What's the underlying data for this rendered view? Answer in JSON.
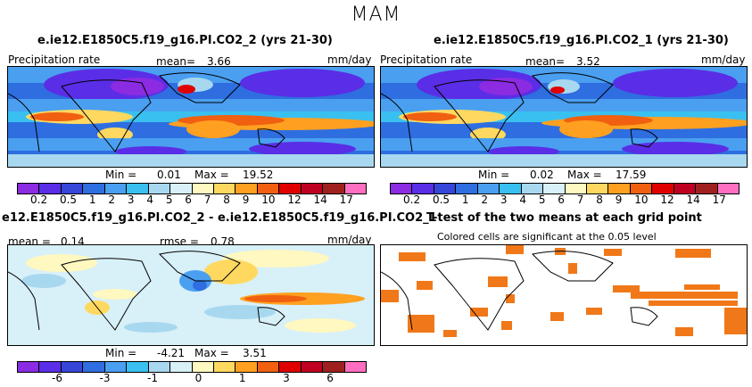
{
  "title": "MAM",
  "panels": {
    "top_left": {
      "title": "e.ie12.E1850C5.f19_g16.PI.CO2_2 (yrs 21-30)",
      "var_label": "Precipitation rate",
      "mean_label": "mean=",
      "mean_value": "3.66",
      "units": "mm/day",
      "min_label": "Min =",
      "min_value": "0.01",
      "max_label": "Max =",
      "max_value": "19.52"
    },
    "top_right": {
      "title": "e.ie12.E1850C5.f19_g16.PI.CO2_1 (yrs 21-30)",
      "var_label": "Precipitation rate",
      "mean_label": "mean=",
      "mean_value": "3.52",
      "units": "mm/day",
      "min_label": "Min =",
      "min_value": "0.02",
      "max_label": "Max =",
      "max_value": "17.59"
    },
    "bottom_left": {
      "title": "e12.E1850C5.f19_g16.PI.CO2_2 - e.ie12.E1850C5.f19_g16.PI.CO2_1",
      "mean_label": "mean =",
      "mean_value": "0.14",
      "rmse_label": "rmse =",
      "rmse_value": "0.78",
      "units": "mm/day",
      "min_label": "Min =",
      "min_value": "-4.21",
      "max_label": "Max =",
      "max_value": "3.51"
    },
    "bottom_right": {
      "title": "T-test of the two means at each grid point",
      "subtitle": "Colored cells are significant at the 0.05 level"
    }
  },
  "colorbars": {
    "precip_ticks": [
      "0.2",
      "0.5",
      "1",
      "2",
      "3",
      "4",
      "5",
      "6",
      "7",
      "8",
      "9",
      "10",
      "12",
      "14",
      "17"
    ],
    "precip_colors": [
      "#8b2be2",
      "#5a2ee6",
      "#3646d8",
      "#2e6ee0",
      "#4a9ff0",
      "#39c0f0",
      "#a8d8f0",
      "#d8f0f8",
      "#fff8c0",
      "#ffd860",
      "#ffa020",
      "#f06010",
      "#e00000",
      "#c00020",
      "#a02020",
      "#ff6ec0"
    ],
    "diff_ticks": [
      "-6",
      "-3",
      "-1",
      "0",
      "1",
      "3",
      "6"
    ],
    "diff_colors": [
      "#8b2be2",
      "#5a2ee6",
      "#3646d8",
      "#2e6ee0",
      "#4a9ff0",
      "#39c0f0",
      "#a8d8f0",
      "#d8f0f8",
      "#fff8c0",
      "#ffd860",
      "#ffa020",
      "#f06010",
      "#e00000",
      "#c00020",
      "#a02020",
      "#ff6ec0"
    ],
    "ttest_color": "#f07818"
  }
}
